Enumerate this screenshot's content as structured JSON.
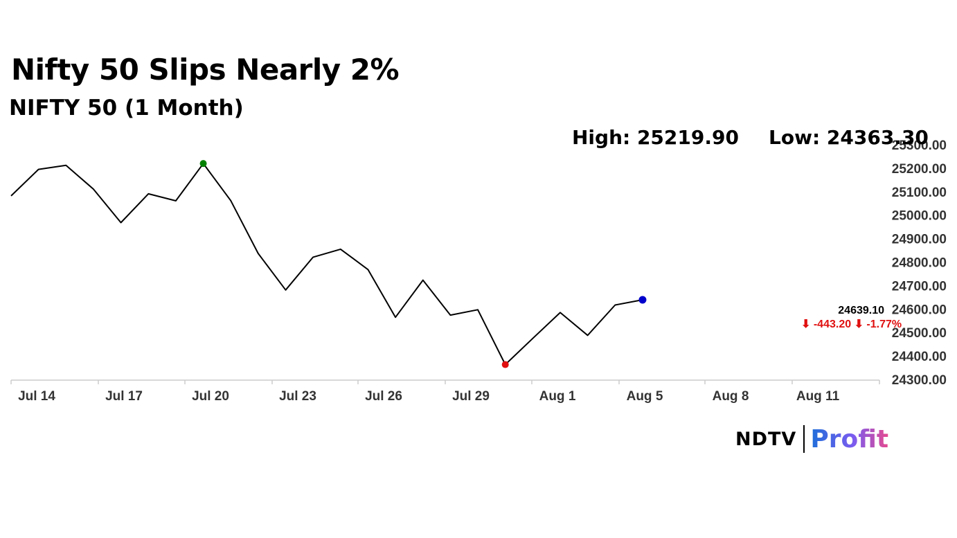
{
  "header": {
    "headline": "Nifty 50 Slips Nearly 2%",
    "subtitle": "NIFTY 50 (1 Month)",
    "high_label": "High: 25219.90",
    "low_label": "Low: 24363.30"
  },
  "brand": {
    "ndtv": "NDTV",
    "profit": "Profit"
  },
  "colors": {
    "line": "#000000",
    "high_marker": "#008000",
    "low_marker": "#e01010",
    "last_marker": "#0000cc",
    "change_text": "#e01010",
    "axis": "#cccccc"
  },
  "chart_data": {
    "type": "line",
    "title": "NIFTY 50 (1 Month)",
    "xlabel": "",
    "ylabel": "",
    "x": [
      "Jul 14",
      "Jul 15",
      "Jul 16",
      "Jul 17",
      "Jul 18",
      "Jul 21",
      "Jul 22",
      "Jul 23",
      "Jul 24",
      "Jul 25",
      "Jul 28",
      "Jul 29",
      "Jul 30",
      "Jul 31",
      "Aug 1",
      "Aug 4",
      "Aug 5",
      "Aug 6",
      "Aug 7",
      "Aug 8",
      "Aug 11",
      "Aug 12",
      "Aug 13",
      "Aug 14"
    ],
    "values": [
      25082,
      25195,
      25212,
      25111,
      24968,
      25091,
      25061,
      25219.9,
      25062,
      24837,
      24681,
      24821,
      24855,
      24768,
      24565,
      24723,
      24574,
      24597,
      24363.3,
      24475,
      24585,
      24488,
      24617,
      24639.1
    ],
    "x_tick_labels": [
      "Jul 14",
      "Jul 17",
      "Jul 20",
      "Jul 23",
      "Jul 26",
      "Jul 29",
      "Aug 1",
      "Aug 5",
      "Aug 8",
      "Aug 11"
    ],
    "y_tick_labels": [
      "25300.00",
      "25200.00",
      "25100.00",
      "25000.00",
      "24900.00",
      "24800.00",
      "24700.00",
      "24600.00",
      "24500.00",
      "24400.00",
      "24300.00"
    ],
    "ylim": [
      24300,
      25300
    ],
    "y_axis_position": "right",
    "grid": false,
    "high": {
      "label": "High: 25219.90",
      "value": 25219.9,
      "index": 7
    },
    "low": {
      "label": "Low: 24363.30",
      "value": 24363.3,
      "index": 18
    },
    "last": {
      "value_label": "24639.10",
      "change_label": "⬇ -443.20 ⬇ -1.77%",
      "value": 24639.1
    }
  }
}
